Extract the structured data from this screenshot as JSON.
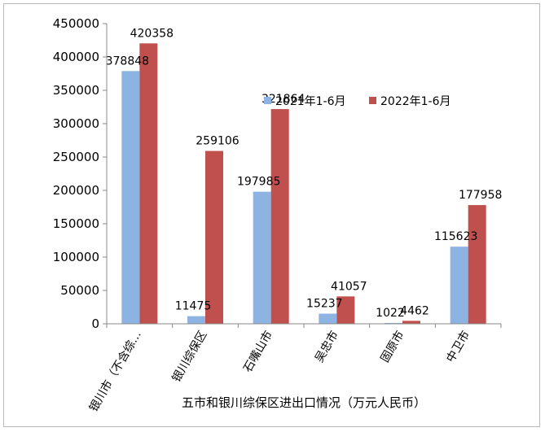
{
  "chart_data": {
    "type": "bar",
    "title": "",
    "xlabel": "五市和银川综保区进出口情况（万元人民币）",
    "ylabel": "",
    "ylim": [
      0,
      450000
    ],
    "yticks": [
      "0",
      "50000",
      "100000",
      "150000",
      "200000",
      "250000",
      "300000",
      "350000",
      "400000",
      "450000"
    ],
    "categories": [
      "银川市（不含综…",
      "银川综保区",
      "石嘴山市",
      "吴忠市",
      "固原市",
      "中卫市"
    ],
    "series": [
      {
        "name": "2021年1-6月",
        "color": "#8db3e2",
        "values": [
          378848,
          11475,
          197985,
          15237,
          1022,
          115623
        ]
      },
      {
        "name": "2022年1-6月",
        "color": "#c0504d",
        "values": [
          420358,
          259106,
          321864,
          41057,
          4462,
          177958
        ]
      }
    ],
    "legend_position": "upper-right",
    "grid": false
  }
}
